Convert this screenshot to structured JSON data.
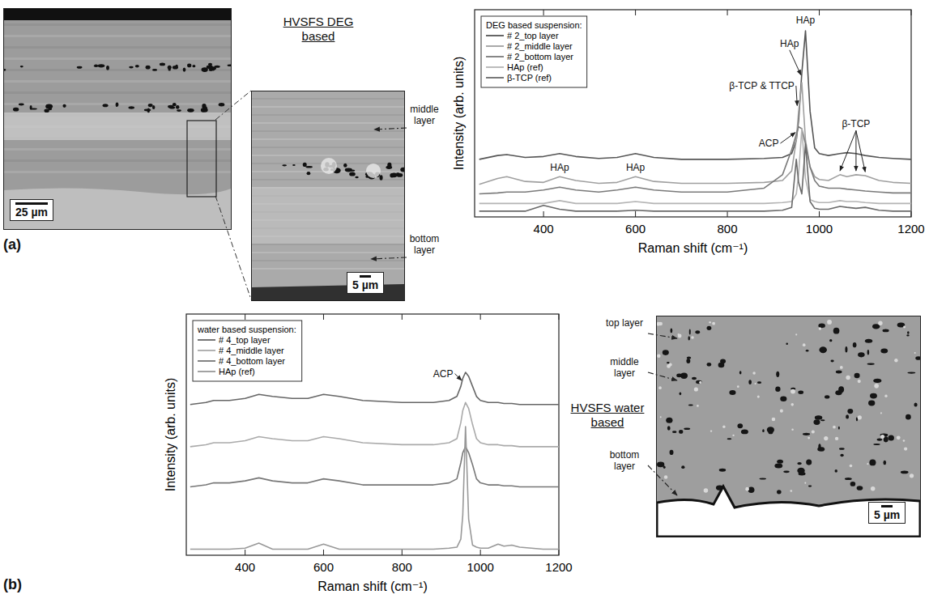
{
  "chart_data": [
    {
      "type": "line",
      "x_label": "Raman shift (cm⁻¹)",
      "y_label": "Intensity (arb. units)",
      "legend_title": "DEG based suspension:",
      "legend": "top-left",
      "tick_labels": "x",
      "xlim": [
        250,
        1200
      ],
      "xticks": [
        400,
        600,
        800,
        1000,
        1200
      ],
      "ylim": [
        0,
        108
      ],
      "x": [
        260,
        300,
        320,
        360,
        400,
        435,
        470,
        520,
        560,
        600,
        640,
        700,
        800,
        880,
        920,
        940,
        950,
        955,
        962,
        970,
        980,
        990,
        1000,
        1020,
        1045,
        1060,
        1080,
        1100,
        1130,
        1160,
        1200
      ],
      "series": [
        {
          "name": "# 2_top layer",
          "color": "#555555",
          "values": [
            30,
            32,
            32.5,
            31,
            31.5,
            33,
            31.5,
            30.5,
            31,
            33,
            31,
            30,
            30,
            30.5,
            31,
            33,
            40,
            50,
            75,
            97,
            55,
            36,
            33,
            32,
            33,
            33.5,
            33,
            32,
            31,
            30.5,
            30
          ]
        },
        {
          "name": "# 2_middle layer",
          "color": "#a0a0a0",
          "values": [
            17,
            20,
            21,
            18.5,
            18,
            21,
            19,
            17.5,
            18,
            21,
            18.5,
            17.5,
            17.5,
            18,
            19,
            24,
            40,
            55,
            70,
            40,
            26,
            21,
            19.5,
            19,
            22,
            21,
            22,
            21.5,
            19,
            18,
            17.5
          ]
        },
        {
          "name": "# 2_bottom layer",
          "color": "#7a7a7a",
          "values": [
            12,
            12.5,
            13,
            13,
            14,
            15.5,
            14,
            13,
            14,
            15.5,
            14,
            13,
            13,
            15,
            22,
            35,
            43,
            47,
            46,
            38,
            26,
            19,
            16,
            15,
            15,
            14.5,
            14,
            13.5,
            13,
            12.5,
            12.5
          ]
        },
        {
          "name": "HAp (ref)",
          "color": "#b4b4b4",
          "values": [
            7,
            7,
            7,
            7,
            7,
            8.5,
            7,
            7,
            7,
            8,
            7,
            7,
            7,
            7,
            7.5,
            8,
            12,
            22,
            46,
            20,
            9,
            8,
            7.5,
            7.5,
            8.5,
            8,
            8,
            7.5,
            7,
            7,
            7
          ]
        },
        {
          "name": "β-TCP (ref)",
          "color": "#6a6a6a",
          "values": [
            3,
            3,
            3,
            3,
            6,
            4,
            3,
            3,
            3,
            3.5,
            3,
            3,
            3,
            3,
            3.5,
            5,
            30,
            18,
            12,
            38,
            8,
            4.5,
            4,
            4,
            5.5,
            5,
            4.5,
            5,
            3.5,
            3,
            3
          ]
        }
      ],
      "annotations": [
        {
          "text": "HAp",
          "x": 970,
          "y": 102
        },
        {
          "text": "HAp",
          "x": 935,
          "y": 90,
          "points": [
            [
              960,
              74
            ]
          ]
        },
        {
          "text": "β-TCP & TTCP",
          "x": 875,
          "y": 68,
          "points": [
            [
              952,
              58
            ]
          ]
        },
        {
          "text": "β-TCP",
          "x": 1080,
          "y": 48,
          "points": [
            [
              1045,
              24
            ],
            [
              1080,
              24
            ],
            [
              1100,
              23.5
            ]
          ]
        },
        {
          "text": "HAp",
          "x": 435,
          "y": 25.5
        },
        {
          "text": "HAp",
          "x": 600,
          "y": 25.5
        },
        {
          "text": "ACP",
          "x": 890,
          "y": 38,
          "points": [
            [
              948,
              44
            ]
          ]
        }
      ]
    },
    {
      "type": "line",
      "x_label": "Raman shift (cm⁻¹)",
      "y_label": "Intensity (arb. units)",
      "legend_title": "water based suspension:",
      "legend": "top-left",
      "tick_labels": "x",
      "xlim": [
        250,
        1200
      ],
      "xticks": [
        400,
        600,
        800,
        1000,
        1200
      ],
      "ylim": [
        0,
        120
      ],
      "x": [
        260,
        300,
        320,
        360,
        400,
        435,
        470,
        520,
        560,
        600,
        640,
        700,
        800,
        880,
        920,
        940,
        950,
        955,
        962,
        970,
        980,
        990,
        1000,
        1020,
        1045,
        1060,
        1080,
        1100,
        1130,
        1160,
        1200
      ],
      "series": [
        {
          "name": "# 4_top layer",
          "color": "#666666",
          "values": [
            75,
            76,
            77,
            77,
            78,
            80,
            79,
            78,
            78,
            80,
            79,
            77,
            76,
            76,
            77,
            79,
            84,
            88,
            91,
            89,
            84,
            79,
            77,
            76,
            76,
            75.5,
            75.5,
            75,
            75,
            75,
            75
          ]
        },
        {
          "name": "# 4_middle layer",
          "color": "#aaaaaa",
          "values": [
            54,
            55,
            56,
            56,
            57,
            59,
            58,
            57,
            57,
            59,
            58,
            56,
            55,
            55,
            56,
            58,
            66,
            72,
            76,
            73,
            65,
            58,
            56,
            55,
            55,
            54.5,
            54.5,
            54,
            54,
            54,
            54
          ]
        },
        {
          "name": "# 4_bottom layer",
          "color": "#777777",
          "values": [
            34,
            35,
            36,
            36,
            37,
            38.5,
            37,
            36,
            36,
            38,
            37,
            35,
            35,
            35,
            36,
            38,
            46,
            51,
            54,
            51,
            45,
            38,
            36,
            35,
            35,
            34.5,
            34.5,
            34,
            34,
            34,
            34
          ]
        },
        {
          "name": "HAp (ref)",
          "color": "#999999",
          "values": [
            3,
            3,
            3,
            3,
            3.5,
            6,
            3,
            3,
            3,
            5.5,
            3,
            3,
            3,
            3,
            3.5,
            4,
            8,
            20,
            64,
            18,
            5,
            4,
            3.5,
            3.5,
            5.5,
            4.5,
            5,
            4,
            3.5,
            3,
            3
          ]
        }
      ],
      "annotations": [
        {
          "text": "ACP",
          "x": 905,
          "y": 90,
          "points": [
            [
              952,
              87
            ]
          ]
        }
      ]
    }
  ],
  "panels": [
    {
      "letter": "(a)",
      "heading": "HVSFS DEG based",
      "images": [
        {
          "scale_bar": "25 µm"
        },
        {
          "scale_bar": "5 µm",
          "labels": [
            "middle layer",
            "bottom layer"
          ]
        }
      ]
    },
    {
      "letter": "(b)",
      "heading": "HVSFS water based",
      "images": [
        {
          "scale_bar": "5 µm",
          "labels": [
            "top layer",
            "middle layer",
            "bottom layer"
          ]
        }
      ]
    }
  ]
}
